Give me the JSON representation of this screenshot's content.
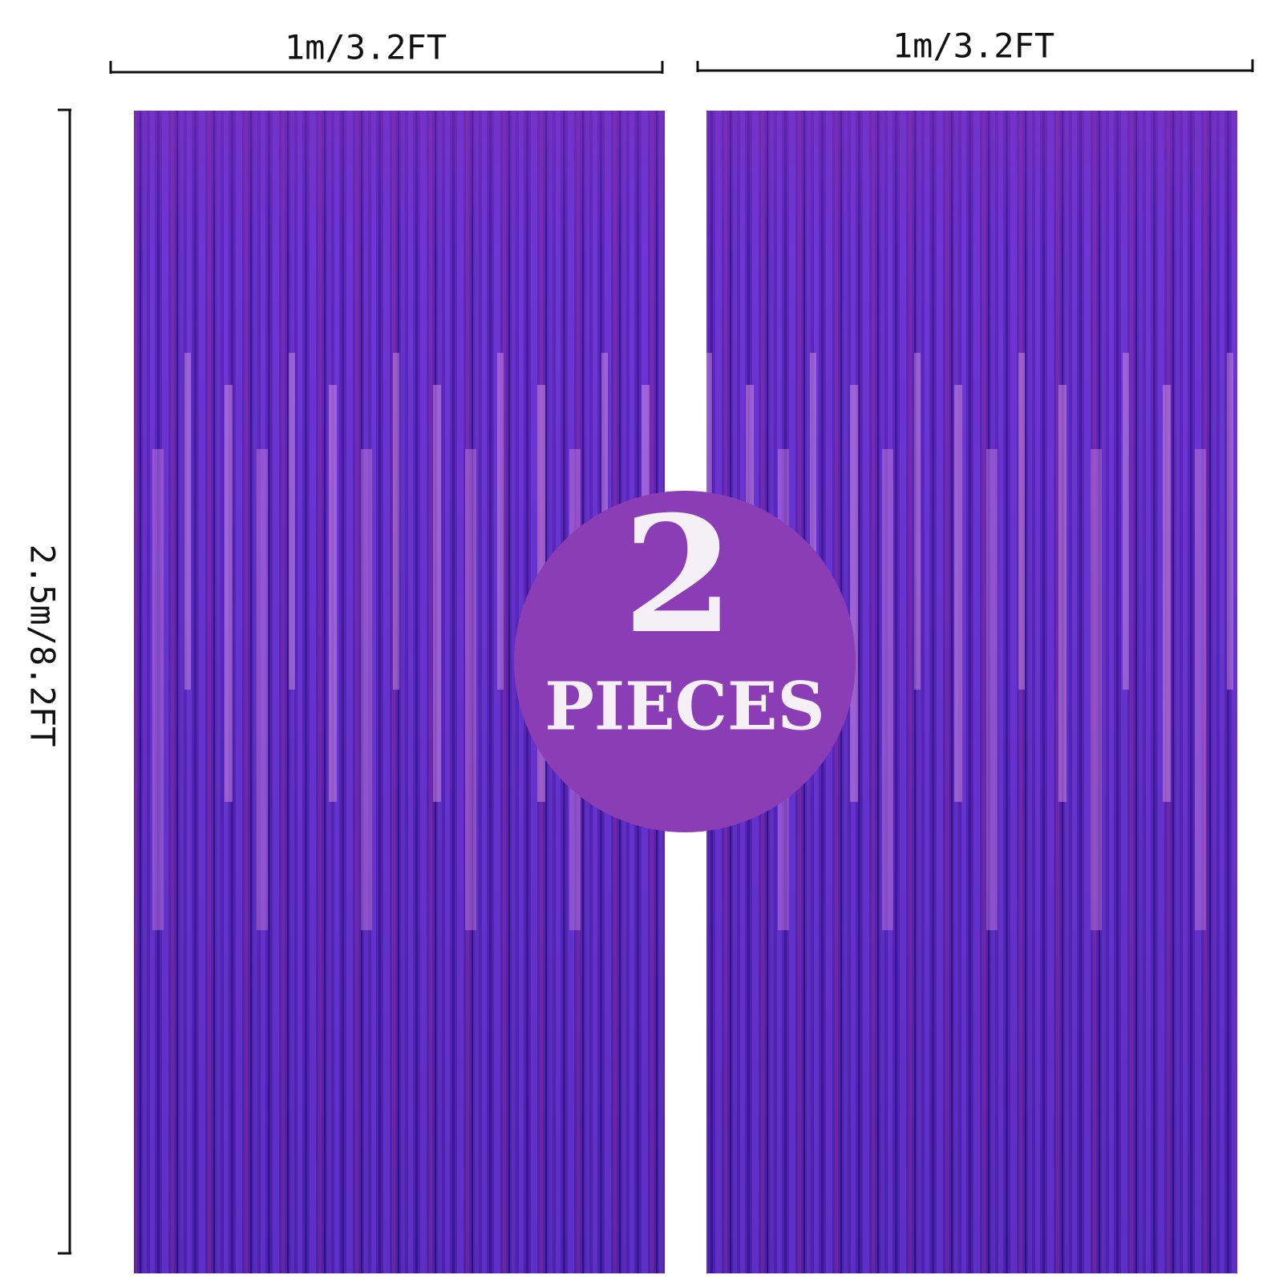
{
  "dimensions": {
    "width_labels": [
      "1m/3.2FT",
      "1m/3.2FT"
    ],
    "height_label": "2.5m/8.2FT"
  },
  "badge": {
    "count": "2",
    "label": "PIECES"
  }
}
